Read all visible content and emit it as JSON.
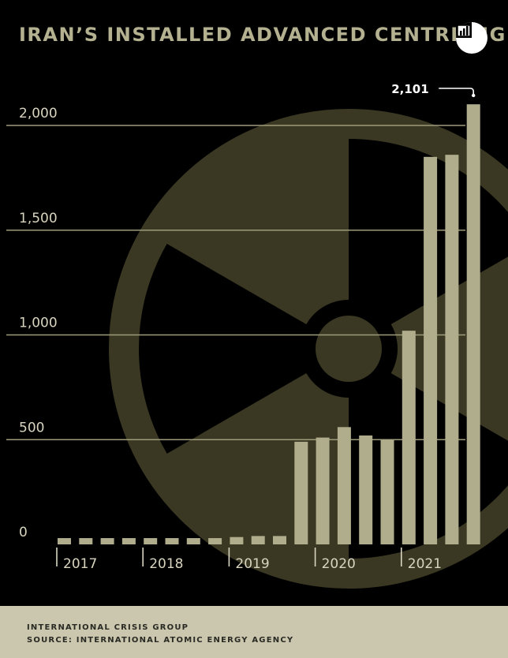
{
  "header": {
    "title": "IRAN’S INSTALLED ADVANCED CENTRIFUGES",
    "logo_icon": "chart-pie-logo-icon"
  },
  "colors": {
    "background": "#000000",
    "bar": "#b0ad8c",
    "gridline": "#9e9b7a",
    "text": "#d8d4bf",
    "title": "#b4b191",
    "watermark": "#3a3822",
    "footer_bg": "#cbc7ae",
    "footer_text": "#2a2a24"
  },
  "chart_data": {
    "type": "bar",
    "title": "IRAN’S INSTALLED ADVANCED CENTRIFUGES",
    "xlabel": "",
    "ylabel": "",
    "ylim": [
      0,
      2000
    ],
    "yticks": [
      0,
      500,
      1000,
      1500,
      2000
    ],
    "ytick_labels": [
      "0",
      "500",
      "1,000",
      "1,500",
      "2,000"
    ],
    "year_labels": [
      "2017",
      "2018",
      "2019",
      "2020",
      "2021"
    ],
    "values": [
      30,
      30,
      30,
      30,
      30,
      30,
      30,
      30,
      35,
      40,
      40,
      490,
      510,
      560,
      520,
      500,
      1020,
      1850,
      1860,
      2101
    ],
    "annotation": {
      "label": "2,101",
      "bar_index": 19
    },
    "grid": true,
    "watermark_icon": "radiation-symbol-icon"
  },
  "footer": {
    "line1": "INTERNATIONAL CRISIS GROUP",
    "line2": "SOURCE: INTERNATIONAL ATOMIC ENERGY AGENCY"
  }
}
